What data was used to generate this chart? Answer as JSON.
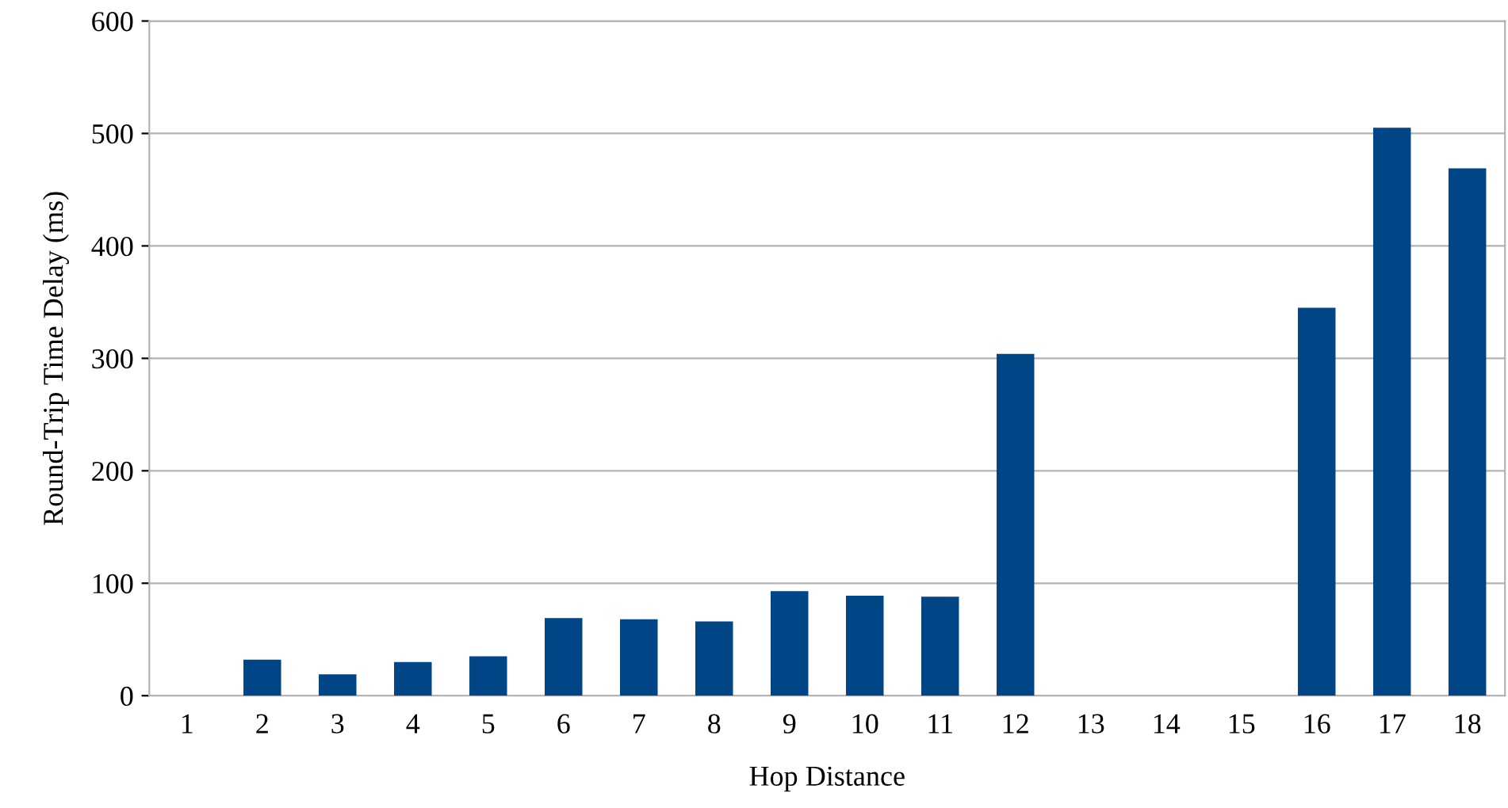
{
  "chart_data": {
    "type": "bar",
    "xlabel": "Hop Distance",
    "ylabel": "Round-Trip Time Delay (ms)",
    "categories": [
      "1",
      "2",
      "3",
      "4",
      "5",
      "6",
      "7",
      "8",
      "9",
      "10",
      "11",
      "12",
      "13",
      "14",
      "15",
      "16",
      "17",
      "18"
    ],
    "values": [
      0,
      32,
      19,
      30,
      35,
      69,
      68,
      66,
      93,
      89,
      88,
      304,
      0,
      0,
      0,
      345,
      505,
      469
    ],
    "color": "#004586",
    "ylim": [
      0,
      600
    ],
    "yticks": [
      0,
      100,
      200,
      300,
      400,
      500,
      600
    ],
    "grid": "y",
    "legend": false
  }
}
